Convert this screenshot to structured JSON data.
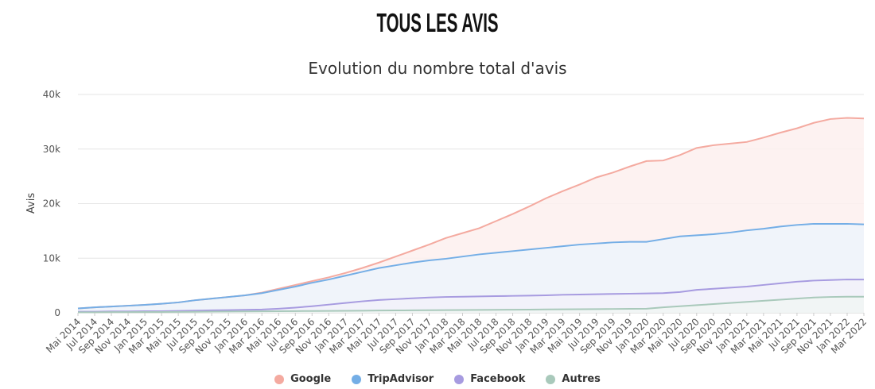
{
  "heading": "TOUS LES AVIS",
  "chart_data": {
    "type": "area",
    "title": "Evolution du nombre total d'avis",
    "ylabel": "Avis",
    "xlabel": "",
    "ylim": [
      0,
      40000
    ],
    "yticks": [
      0,
      10000,
      20000,
      30000,
      40000
    ],
    "ytick_labels": [
      "0",
      "10k",
      "20k",
      "30k",
      "40k"
    ],
    "grid": true,
    "legend_position": "bottom-center",
    "categories": [
      "Mai 2014",
      "Jul 2014",
      "Sep 2014",
      "Nov 2014",
      "Jan 2015",
      "Mar 2015",
      "Mai 2015",
      "Jul 2015",
      "Sep 2015",
      "Nov 2015",
      "Jan 2016",
      "Mar 2016",
      "Mai 2016",
      "Jul 2016",
      "Sep 2016",
      "Nov 2016",
      "Jan 2017",
      "Mar 2017",
      "Mai 2017",
      "Jul 2017",
      "Sep 2017",
      "Nov 2017",
      "Jan 2018",
      "Mar 2018",
      "Mai 2018",
      "Jul 2018",
      "Sep 2018",
      "Nov 2018",
      "Jan 2019",
      "Mar 2019",
      "Mai 2019",
      "Jul 2019",
      "Sep 2019",
      "Nov 2019",
      "Jan 2020",
      "Mar 2020",
      "Mai 2020",
      "Jul 2020",
      "Sep 2020",
      "Nov 2020",
      "Jan 2021",
      "Mar 2021",
      "Mai 2021",
      "Jul 2021",
      "Sep 2021",
      "Nov 2021",
      "Jan 2022",
      "Mar 2022"
    ],
    "series": [
      {
        "name": "Google",
        "color": "#f4aaa0",
        "fill": "#fdf0ee",
        "values": [
          800,
          1000,
          1150,
          1300,
          1450,
          1650,
          1900,
          2300,
          2600,
          2900,
          3200,
          3700,
          4400,
          5100,
          5800,
          6500,
          7300,
          8200,
          9200,
          10300,
          11400,
          12500,
          13700,
          14600,
          15500,
          16800,
          18100,
          19500,
          21000,
          22300,
          23500,
          24800,
          25700,
          26800,
          27800,
          27900,
          28900,
          30200,
          30700,
          31000,
          31300,
          32100,
          33000,
          33800,
          34800,
          35500,
          35700,
          35600
        ]
      },
      {
        "name": "TripAdvisor",
        "color": "#74aee6",
        "fill": "#edf4fb",
        "values": [
          800,
          1000,
          1150,
          1300,
          1450,
          1650,
          1900,
          2300,
          2600,
          2900,
          3200,
          3600,
          4200,
          4800,
          5500,
          6100,
          6800,
          7500,
          8200,
          8700,
          9200,
          9600,
          9900,
          10300,
          10700,
          11000,
          11300,
          11600,
          11900,
          12200,
          12500,
          12700,
          12900,
          13000,
          13000,
          13500,
          14000,
          14200,
          14400,
          14700,
          15100,
          15400,
          15800,
          16100,
          16300,
          16300,
          16300,
          16200
        ]
      },
      {
        "name": "Facebook",
        "color": "#a79be0",
        "fill": "#f2f1f9",
        "values": [
          200,
          200,
          250,
          250,
          300,
          300,
          350,
          400,
          450,
          500,
          550,
          600,
          750,
          950,
          1200,
          1500,
          1800,
          2100,
          2350,
          2500,
          2650,
          2800,
          2900,
          2950,
          3000,
          3050,
          3100,
          3150,
          3200,
          3300,
          3350,
          3400,
          3450,
          3500,
          3550,
          3600,
          3800,
          4200,
          4400,
          4600,
          4800,
          5100,
          5400,
          5700,
          5900,
          6000,
          6100,
          6100
        ]
      },
      {
        "name": "Autres",
        "color": "#a9c9bb",
        "fill": "#f1f6f3",
        "values": [
          100,
          100,
          120,
          120,
          150,
          150,
          170,
          190,
          210,
          230,
          250,
          270,
          290,
          310,
          330,
          350,
          370,
          390,
          410,
          430,
          450,
          470,
          490,
          510,
          530,
          550,
          570,
          590,
          610,
          630,
          650,
          670,
          700,
          720,
          750,
          1000,
          1200,
          1400,
          1600,
          1800,
          2000,
          2200,
          2400,
          2600,
          2800,
          2900,
          2950,
          2950
        ]
      }
    ]
  }
}
